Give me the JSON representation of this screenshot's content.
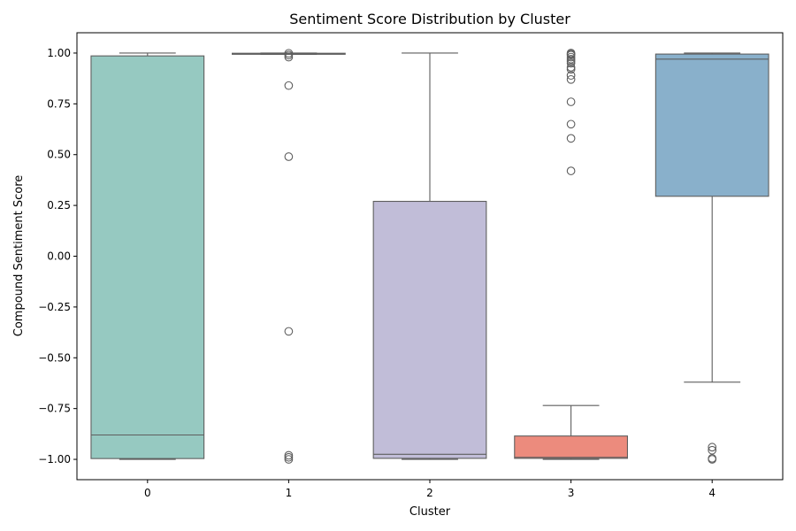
{
  "chart_data": {
    "type": "box",
    "title": "Sentiment Score Distribution by Cluster",
    "xlabel": "Cluster",
    "ylabel": "Compound Sentiment Score",
    "ylim": [
      -1.1,
      1.1
    ],
    "yticks": [
      -1.0,
      -0.75,
      -0.5,
      -0.25,
      0.0,
      0.25,
      0.5,
      0.75,
      1.0
    ],
    "ytick_labels": [
      "−1.00",
      "−0.75",
      "−0.50",
      "−0.25",
      "0.00",
      "0.25",
      "0.50",
      "0.75",
      "1.00"
    ],
    "grid": false,
    "categories": [
      "0",
      "1",
      "2",
      "3",
      "4"
    ],
    "boxes": [
      {
        "category": "0",
        "whisker_low": -1.0,
        "q1": -0.996,
        "median": -0.88,
        "q3": 0.986,
        "whisker_high": 1.0,
        "outliers": [],
        "color": "#96c9c1"
      },
      {
        "category": "1",
        "whisker_low": 0.994,
        "q1": 0.994,
        "median": 0.997,
        "q3": 0.999,
        "whisker_high": 1.0,
        "outliers": [
          0.999,
          0.99,
          0.98,
          0.84,
          0.49,
          -0.37,
          -0.98,
          -0.99,
          -1.0
        ],
        "color": "#fbfbb6"
      },
      {
        "category": "2",
        "whisker_low": -1.0,
        "q1": -0.995,
        "median": -0.975,
        "q3": 0.27,
        "whisker_high": 1.0,
        "outliers": [],
        "color": "#c1bdd8"
      },
      {
        "category": "3",
        "whisker_low": -1.0,
        "q1": -0.995,
        "median": -0.99,
        "q3": -0.885,
        "whisker_high": -0.735,
        "outliers": [
          1.0,
          0.995,
          0.99,
          0.98,
          0.97,
          0.96,
          0.95,
          0.93,
          0.92,
          0.89,
          0.87,
          0.76,
          0.65,
          0.58,
          0.42
        ],
        "color": "#ec8b7d"
      },
      {
        "category": "4",
        "whisker_low": -0.62,
        "q1": 0.295,
        "median": 0.97,
        "q3": 0.995,
        "whisker_high": 1.0,
        "outliers": [
          -0.94,
          -0.955,
          -0.995,
          -1.0
        ],
        "color": "#89b0cb"
      }
    ],
    "line_color": "#5e5e5e"
  }
}
